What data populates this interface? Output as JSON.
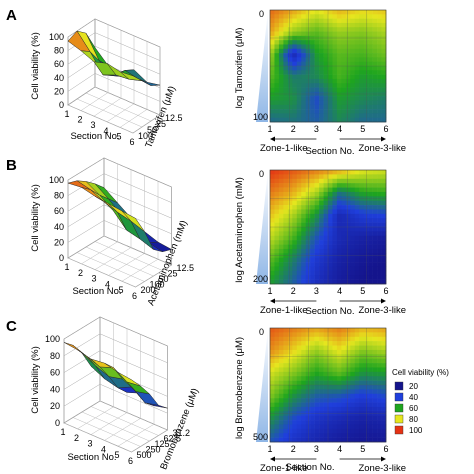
{
  "colors": {
    "scale": [
      "#14148c",
      "#1f3fdc",
      "#1ea51e",
      "#e6e61e",
      "#e53214"
    ],
    "wedge": "#8fb6e6",
    "grid": "#2a2a2a"
  },
  "legend": {
    "title": "Cell viability (%)",
    "items": [
      {
        "label": "20",
        "color": "#14148c"
      },
      {
        "label": "40",
        "color": "#1f3fdc"
      },
      {
        "label": "60",
        "color": "#1ea51e"
      },
      {
        "label": "80",
        "color": "#e6e61e"
      },
      {
        "label": "100",
        "color": "#e53214"
      }
    ]
  },
  "chart_data": [
    {
      "panel": "A",
      "type": "surface",
      "zlabel": "Cell viability (%)",
      "xlabel": "Section No.",
      "ylabel": "Tamoxifen (μM)",
      "x": [
        1,
        2,
        3,
        4,
        5,
        6
      ],
      "x_ticks": [
        "1",
        "2",
        "3",
        "4",
        "5",
        "6"
      ],
      "y_ticks": [
        "12.5",
        "25",
        "50",
        "100"
      ],
      "z_ticks": [
        "0",
        "20",
        "40",
        "60",
        "80",
        "100"
      ],
      "zlim": [
        0,
        100
      ],
      "z": [
        [
          94,
          88,
          80,
          86,
          82,
          84
        ],
        [
          100,
          78,
          52,
          60,
          62,
          68
        ],
        [
          88,
          56,
          42,
          58,
          54,
          52
        ],
        [
          58,
          40,
          32,
          50,
          40,
          44
        ]
      ]
    },
    {
      "panel": "A",
      "type": "heatmap",
      "ylabel": "log Tamoxifen (μM)",
      "xlabel": "Section No.",
      "x_ticks": [
        "1",
        "2",
        "3",
        "4",
        "5",
        "6"
      ],
      "y_min_label": "0",
      "y_max_label": "100",
      "zone_left": "Zone-1-like",
      "zone_right": "Zone-3-like",
      "x": [
        1,
        2,
        3,
        4,
        5,
        6
      ],
      "z": [
        [
          94,
          88,
          80,
          86,
          82,
          84
        ],
        [
          88,
          72,
          66,
          72,
          70,
          74
        ],
        [
          74,
          30,
          58,
          66,
          64,
          68
        ],
        [
          66,
          52,
          54,
          64,
          58,
          60
        ],
        [
          58,
          56,
          42,
          58,
          54,
          52
        ],
        [
          48,
          50,
          46,
          54,
          48,
          48
        ]
      ]
    },
    {
      "panel": "B",
      "type": "surface",
      "zlabel": "Cell viability (%)",
      "xlabel": "Section No.",
      "ylabel": "Acetaminophen (mM)",
      "x": [
        1,
        2,
        3,
        4,
        5,
        6
      ],
      "x_ticks": [
        "1",
        "2",
        "3",
        "4",
        "5",
        "6"
      ],
      "y_ticks": [
        "12.5",
        "25",
        "50",
        "100",
        "200"
      ],
      "z_ticks": [
        "0",
        "20",
        "40",
        "60",
        "80",
        "100"
      ],
      "zlim": [
        0,
        100
      ],
      "z": [
        [
          96,
          98,
          94,
          92,
          90,
          88
        ],
        [
          92,
          88,
          80,
          74,
          70,
          64
        ],
        [
          84,
          74,
          62,
          44,
          40,
          34
        ],
        [
          74,
          62,
          48,
          34,
          28,
          24
        ],
        [
          62,
          50,
          38,
          28,
          22,
          20
        ]
      ]
    },
    {
      "panel": "B",
      "type": "heatmap",
      "ylabel": "log Acetaminophen (mM)",
      "xlabel": "Section No.",
      "x_ticks": [
        "1",
        "2",
        "3",
        "4",
        "5",
        "6"
      ],
      "y_min_label": "0",
      "y_max_label": "200",
      "zone_left": "Zone-1-like",
      "zone_right": "Zone-3-like",
      "x": [
        1,
        2,
        3,
        4,
        5,
        6
      ],
      "z": [
        [
          100,
          96,
          92,
          88,
          80,
          78
        ],
        [
          92,
          86,
          74,
          50,
          60,
          62
        ],
        [
          84,
          74,
          56,
          30,
          38,
          40
        ],
        [
          76,
          64,
          44,
          30,
          26,
          24
        ],
        [
          66,
          52,
          36,
          26,
          22,
          20
        ],
        [
          58,
          46,
          32,
          24,
          20,
          18
        ]
      ]
    },
    {
      "panel": "C",
      "type": "surface",
      "zlabel": "Cell viability (%)",
      "xlabel": "Section No.",
      "ylabel": "Bromobenzene (μM)",
      "x": [
        1,
        2,
        3,
        4,
        5,
        6
      ],
      "x_ticks": [
        "1",
        "2",
        "3",
        "4",
        "5",
        "6"
      ],
      "y_ticks": [
        "31.2",
        "62.5",
        "125",
        "250",
        "500"
      ],
      "z_ticks": [
        "0",
        "20",
        "40",
        "60",
        "80",
        "100"
      ],
      "zlim": [
        0,
        100
      ],
      "z": [
        [
          96,
          94,
          90,
          92,
          88,
          86
        ],
        [
          86,
          80,
          74,
          80,
          70,
          72
        ],
        [
          70,
          62,
          56,
          60,
          52,
          56
        ],
        [
          48,
          40,
          36,
          44,
          32,
          36
        ],
        [
          34,
          28,
          24,
          30,
          22,
          26
        ]
      ]
    },
    {
      "panel": "C",
      "type": "heatmap",
      "ylabel": "log Bromobenzene (μM)",
      "xlabel": "Section No.",
      "x_ticks": [
        "1",
        "2",
        "3",
        "4",
        "5",
        "6"
      ],
      "y_min_label": "0",
      "y_max_label": "500",
      "zone_left": "Zone-1-like",
      "zone_right": "Zone-3-like",
      "x": [
        1,
        2,
        3,
        4,
        5,
        6
      ],
      "z": [
        [
          96,
          92,
          88,
          92,
          86,
          88
        ],
        [
          90,
          82,
          72,
          80,
          70,
          74
        ],
        [
          78,
          70,
          60,
          66,
          56,
          58
        ],
        [
          70,
          56,
          46,
          44,
          38,
          42
        ],
        [
          56,
          42,
          34,
          30,
          26,
          28
        ],
        [
          44,
          34,
          28,
          24,
          22,
          22
        ]
      ]
    }
  ]
}
